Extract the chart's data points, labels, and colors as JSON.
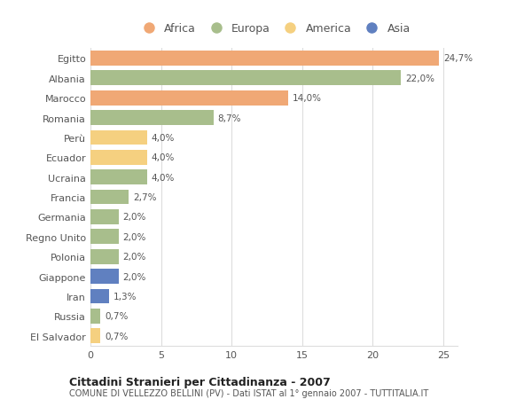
{
  "countries": [
    "Egitto",
    "Albania",
    "Marocco",
    "Romania",
    "Perù",
    "Ecuador",
    "Ucraina",
    "Francia",
    "Germania",
    "Regno Unito",
    "Polonia",
    "Giappone",
    "Iran",
    "Russia",
    "El Salvador"
  ],
  "values": [
    24.7,
    22.0,
    14.0,
    8.7,
    4.0,
    4.0,
    4.0,
    2.7,
    2.0,
    2.0,
    2.0,
    2.0,
    1.3,
    0.7,
    0.7
  ],
  "labels": [
    "24,7%",
    "22,0%",
    "14,0%",
    "8,7%",
    "4,0%",
    "4,0%",
    "4,0%",
    "2,7%",
    "2,0%",
    "2,0%",
    "2,0%",
    "2,0%",
    "1,3%",
    "0,7%",
    "0,7%"
  ],
  "continents": [
    "Africa",
    "Europa",
    "Africa",
    "Europa",
    "America",
    "America",
    "Europa",
    "Europa",
    "Europa",
    "Europa",
    "Europa",
    "Asia",
    "Asia",
    "Europa",
    "America"
  ],
  "continent_colors": {
    "Africa": "#F0A875",
    "Europa": "#A8BE8C",
    "America": "#F5D080",
    "Asia": "#6080C0"
  },
  "legend_order": [
    "Africa",
    "Europa",
    "America",
    "Asia"
  ],
  "title_bold": "Cittadini Stranieri per Cittadinanza - 2007",
  "subtitle": "COMUNE DI VELLEZZO BELLINI (PV) - Dati ISTAT al 1° gennaio 2007 - TUTTITALIA.IT",
  "xlim": [
    0,
    26
  ],
  "xticks": [
    0,
    5,
    10,
    15,
    20,
    25
  ],
  "background_color": "#ffffff",
  "grid_color": "#dddddd",
  "bar_height": 0.75
}
